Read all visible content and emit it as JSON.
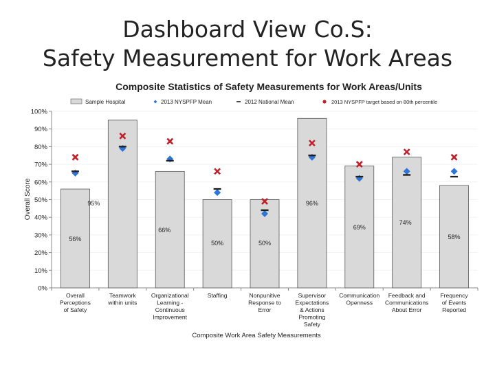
{
  "slide": {
    "title_line1": "Dashboard View Co.S:",
    "title_line2": "Safety Measurement for Work Areas"
  },
  "chart_data": {
    "type": "bar",
    "title": "Composite Statistics of Safety Measurements for Work Areas/Units",
    "xlabel": "Composite Work Area Safety Measurements",
    "ylabel": "Overall Score",
    "ylim": [
      0,
      100
    ],
    "yticks": [
      "0%",
      "10%",
      "20%",
      "30%",
      "40%",
      "50%",
      "60%",
      "70%",
      "80%",
      "90%",
      "100%"
    ],
    "legend_position": "top",
    "categories": [
      [
        "Overall",
        "Perceptions",
        "of Safety"
      ],
      [
        "Teamwork",
        "within units"
      ],
      [
        "Organizational",
        "Learning -",
        "Continuous",
        "Improvement"
      ],
      [
        "Staffing"
      ],
      [
        "Nonpunitive",
        "Response to",
        "Error"
      ],
      [
        "Supervisor",
        "Expectations",
        "& Actions",
        "Promoting",
        "Safety"
      ],
      [
        "Communication",
        "Openness"
      ],
      [
        "Feedback and",
        "Communications",
        "About Error"
      ],
      [
        "Frequency",
        "of Events",
        "Reported"
      ]
    ],
    "series": [
      {
        "name": "Sample Hospital",
        "marker": "bar",
        "color": "#d9d9d9",
        "values": [
          56,
          95,
          66,
          50,
          50,
          96,
          69,
          74,
          58
        ],
        "data_labels": [
          "56%",
          "95%",
          "66%",
          "50%",
          "50%",
          "96%",
          "69%",
          "74%",
          "58%"
        ]
      },
      {
        "name": "2013 NYSPFP Mean",
        "marker": "diamond",
        "color": "#2e75d8",
        "values": [
          65,
          79,
          73,
          54,
          42,
          74,
          62,
          66,
          66
        ]
      },
      {
        "name": "2012 National Mean",
        "marker": "dash",
        "color": "#1f1f1f",
        "values": [
          66,
          80,
          72,
          56,
          44,
          75,
          63,
          64,
          63
        ]
      },
      {
        "name": "2013 NYSPFP target based on 80th percentile",
        "marker": "x",
        "color": "#c0202a",
        "values": [
          74,
          86,
          83,
          66,
          49,
          82,
          70,
          77,
          74
        ]
      }
    ]
  }
}
